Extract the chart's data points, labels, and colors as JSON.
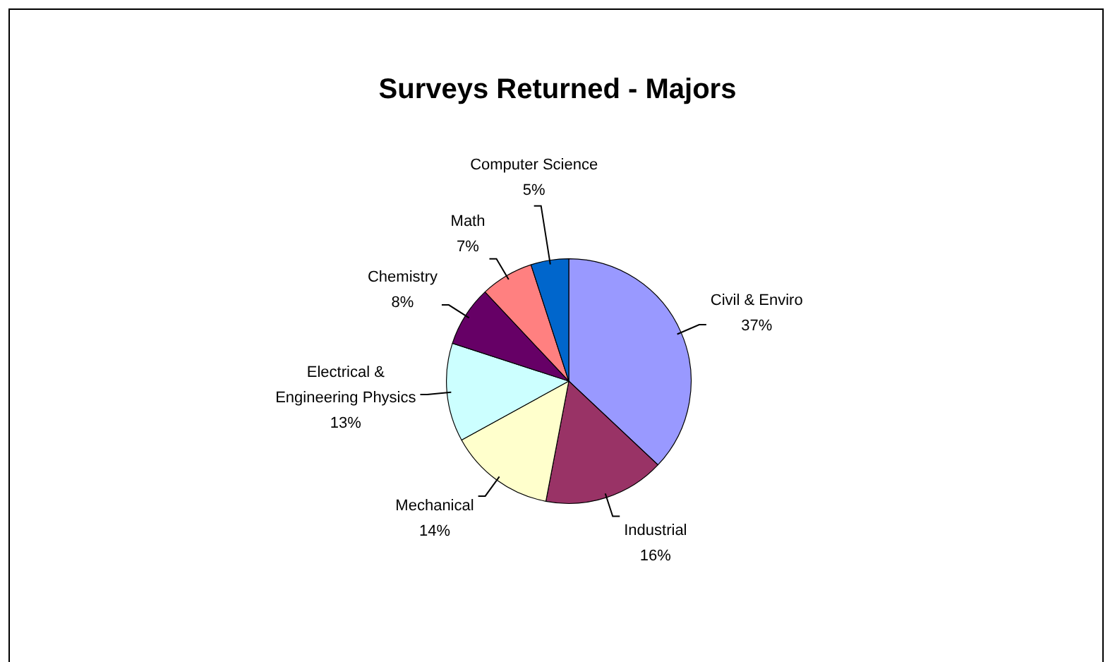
{
  "chart_data": {
    "type": "pie",
    "title": "Surveys Returned - Majors",
    "categories": [
      "Civil & Enviro",
      "Industrial",
      "Mechanical",
      "Electrical & Engineering Physics",
      "Chemistry",
      "Math",
      "Computer Science"
    ],
    "values": [
      37,
      16,
      14,
      13,
      8,
      7,
      5
    ],
    "value_labels": [
      "37%",
      "16%",
      "14%",
      "13%",
      "8%",
      "7%",
      "5%"
    ],
    "colors": [
      "#9999ff",
      "#993366",
      "#ffffcc",
      "#ccffff",
      "#660066",
      "#ff8080",
      "#0066cc"
    ],
    "legend": false
  }
}
